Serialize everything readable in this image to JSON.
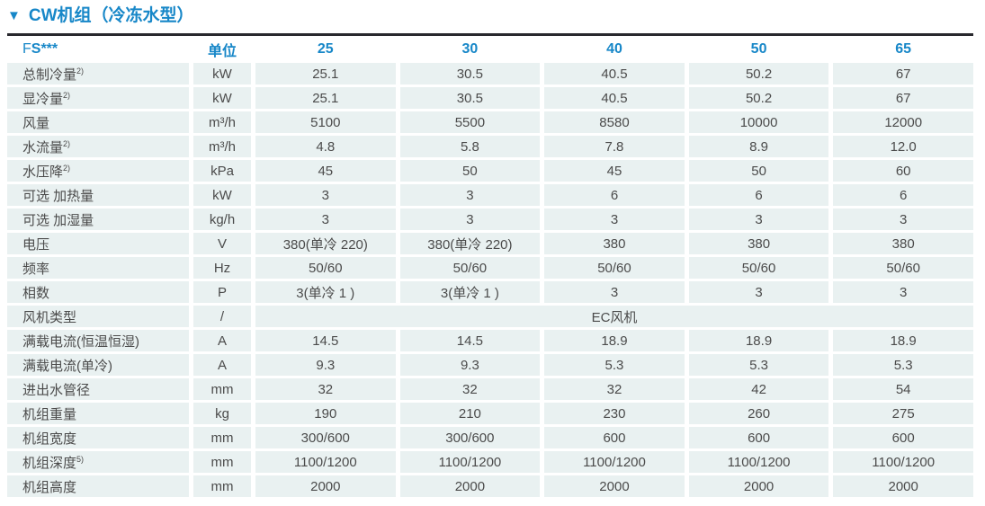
{
  "colors": {
    "accent": "#1787c8",
    "rule_dark": "#28282e",
    "row_background": "#e9f1f1",
    "body_text": "#4b4b4b"
  },
  "section": {
    "marker": "▼",
    "title": "CW机组（冷冻水型）"
  },
  "table": {
    "header": {
      "model_light": "F",
      "model_bold": "S***",
      "unit_label": "单位",
      "columns": [
        "25",
        "30",
        "40",
        "50",
        "65"
      ]
    },
    "rows": [
      {
        "label": "总制冷量",
        "sup": "2)",
        "unit": "kW",
        "values": [
          "25.1",
          "30.5",
          "40.5",
          "50.2",
          "67"
        ]
      },
      {
        "label": "显冷量",
        "sup": "2)",
        "unit": "kW",
        "values": [
          "25.1",
          "30.5",
          "40.5",
          "50.2",
          "67"
        ]
      },
      {
        "label": "风量",
        "sup": "",
        "unit": "m³/h",
        "values": [
          "5100",
          "5500",
          "8580",
          "10000",
          "12000"
        ]
      },
      {
        "label": "水流量",
        "sup": "2)",
        "unit": "m³/h",
        "values": [
          "4.8",
          "5.8",
          "7.8",
          "8.9",
          "12.0"
        ]
      },
      {
        "label": "水压降",
        "sup": "2)",
        "unit": "kPa",
        "values": [
          "45",
          "50",
          "45",
          "50",
          "60"
        ]
      },
      {
        "label": "可选 加热量",
        "sup": "",
        "unit": "kW",
        "values": [
          "3",
          "3",
          "6",
          "6",
          "6"
        ]
      },
      {
        "label": "可选 加湿量",
        "sup": "",
        "unit": "kg/h",
        "values": [
          "3",
          "3",
          "3",
          "3",
          "3"
        ]
      },
      {
        "label": "电压",
        "sup": "",
        "unit": "V",
        "values": [
          "380(单冷 220)",
          "380(单冷 220)",
          "380",
          "380",
          "380"
        ]
      },
      {
        "label": "频率",
        "sup": "",
        "unit": "Hz",
        "values": [
          "50/60",
          "50/60",
          "50/60",
          "50/60",
          "50/60"
        ]
      },
      {
        "label": "相数",
        "sup": "",
        "unit": "P",
        "values": [
          "3(单冷 1 )",
          "3(单冷 1 )",
          "3",
          "3",
          "3"
        ]
      },
      {
        "label": "风机类型",
        "sup": "",
        "unit": "/",
        "merged_value": "EC风机"
      },
      {
        "label": "满载电流(恒温恒湿)",
        "sup": "",
        "unit": "A",
        "values": [
          "14.5",
          "14.5",
          "18.9",
          "18.9",
          "18.9"
        ]
      },
      {
        "label": "满载电流(单冷)",
        "sup": "",
        "unit": "A",
        "values": [
          "9.3",
          "9.3",
          "5.3",
          "5.3",
          "5.3"
        ]
      },
      {
        "label": "进出水管径",
        "sup": "",
        "unit": "mm",
        "values": [
          "32",
          "32",
          "32",
          "42",
          "54"
        ]
      },
      {
        "label": "机组重量",
        "sup": "",
        "unit": "kg",
        "values": [
          "190",
          "210",
          "230",
          "260",
          "275"
        ]
      },
      {
        "label": "机组宽度",
        "sup": "",
        "unit": "mm",
        "values": [
          "300/600",
          "300/600",
          "600",
          "600",
          "600"
        ]
      },
      {
        "label": "机组深度",
        "sup": "5)",
        "unit": "mm",
        "values": [
          "1100/1200",
          "1100/1200",
          "1100/1200",
          "1100/1200",
          "1100/1200"
        ]
      },
      {
        "label": "机组高度",
        "sup": "",
        "unit": "mm",
        "values": [
          "2000",
          "2000",
          "2000",
          "2000",
          "2000"
        ]
      }
    ]
  }
}
